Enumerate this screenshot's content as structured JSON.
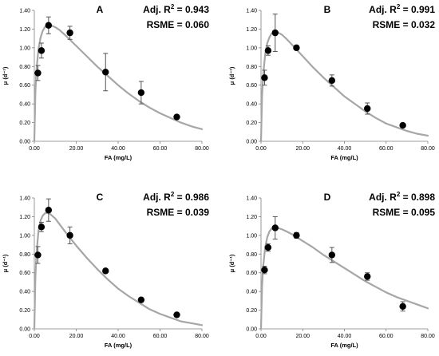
{
  "chart_data": [
    {
      "type": "scatter",
      "panel": "A",
      "xlabel": "FA (mg/L)",
      "ylabel": "μ (d⁻¹)",
      "xlim": [
        0,
        80
      ],
      "ylim": [
        0,
        1.4
      ],
      "x_ticks": [
        "0.00",
        "20.00",
        "40.00",
        "60.00",
        "80.00"
      ],
      "y_ticks": [
        "0.00",
        "0.20",
        "0.40",
        "0.60",
        "0.80",
        "1.00",
        "1.20",
        "1.40"
      ],
      "stats": {
        "r2_prefix": "Adj. R",
        "r2_value": "= 0.943",
        "rsme": "RSME = 0.060"
      },
      "points": [
        {
          "x": 1.7,
          "y": 0.73,
          "err": 0.08
        },
        {
          "x": 3.4,
          "y": 0.97,
          "err": 0.08
        },
        {
          "x": 6.8,
          "y": 1.24,
          "err": 0.09
        },
        {
          "x": 17,
          "y": 1.16,
          "err": 0.07
        },
        {
          "x": 34,
          "y": 0.74,
          "err": 0.2
        },
        {
          "x": 51,
          "y": 0.52,
          "err": 0.12
        },
        {
          "x": 68,
          "y": 0.26,
          "err": 0.02
        }
      ],
      "fit": {
        "x": [
          0,
          0.5,
          1,
          2,
          3,
          4,
          5,
          6,
          7,
          8,
          10,
          12,
          15,
          20,
          25,
          30,
          35,
          40,
          45,
          50,
          55,
          60,
          65,
          70,
          75,
          80
        ],
        "y": [
          0,
          0.52,
          0.76,
          0.99,
          1.11,
          1.18,
          1.22,
          1.24,
          1.245,
          1.24,
          1.22,
          1.19,
          1.13,
          1.02,
          0.91,
          0.8,
          0.7,
          0.6,
          0.51,
          0.43,
          0.36,
          0.3,
          0.25,
          0.2,
          0.16,
          0.13
        ]
      }
    },
    {
      "type": "scatter",
      "panel": "B",
      "xlabel": "FA (mg/L)",
      "ylabel": "μ (d⁻¹)",
      "xlim": [
        0,
        80
      ],
      "ylim": [
        0,
        1.4
      ],
      "x_ticks": [
        "0.00",
        "20.00",
        "40.00",
        "60.00",
        "80.00"
      ],
      "y_ticks": [
        "0.00",
        "0.20",
        "0.40",
        "0.60",
        "0.80",
        "1.00",
        "1.20",
        "1.40"
      ],
      "stats": {
        "r2_prefix": "Adj. R",
        "r2_value": "= 0.991",
        "rsme": "RSME = 0.032"
      },
      "points": [
        {
          "x": 1.7,
          "y": 0.68,
          "err": 0.08
        },
        {
          "x": 3.4,
          "y": 0.97,
          "err": 0.05
        },
        {
          "x": 6.8,
          "y": 1.16,
          "err": 0.2
        },
        {
          "x": 17,
          "y": 1.0,
          "err": 0.02
        },
        {
          "x": 34,
          "y": 0.65,
          "err": 0.06
        },
        {
          "x": 51,
          "y": 0.35,
          "err": 0.06
        },
        {
          "x": 68,
          "y": 0.17,
          "err": 0.01
        }
      ],
      "fit": {
        "x": [
          0,
          0.5,
          1,
          2,
          3,
          4,
          5,
          6,
          7,
          8,
          10,
          12,
          15,
          20,
          25,
          30,
          35,
          40,
          45,
          50,
          55,
          60,
          65,
          70,
          75,
          80
        ],
        "y": [
          0,
          0.48,
          0.7,
          0.93,
          1.05,
          1.11,
          1.15,
          1.165,
          1.17,
          1.165,
          1.14,
          1.1,
          1.03,
          0.91,
          0.79,
          0.68,
          0.58,
          0.48,
          0.4,
          0.32,
          0.25,
          0.19,
          0.15,
          0.11,
          0.08,
          0.06
        ]
      }
    },
    {
      "type": "scatter",
      "panel": "C",
      "xlabel": "FA (mg/L)",
      "ylabel": "μ (d⁻¹)",
      "xlim": [
        0,
        80
      ],
      "ylim": [
        0,
        1.4
      ],
      "x_ticks": [
        "0.00",
        "20.00",
        "40.00",
        "60.00",
        "80.00"
      ],
      "y_ticks": [
        "0.00",
        "0.20",
        "0.40",
        "0.60",
        "0.80",
        "1.00",
        "1.20",
        "1.40"
      ],
      "stats": {
        "r2_prefix": "Adj. R",
        "r2_value": "= 0.986",
        "rsme": "RSME = 0.039"
      },
      "points": [
        {
          "x": 1.7,
          "y": 0.79,
          "err": 0.09
        },
        {
          "x": 3.4,
          "y": 1.09,
          "err": 0.05
        },
        {
          "x": 6.8,
          "y": 1.27,
          "err": 0.12
        },
        {
          "x": 17,
          "y": 1.0,
          "err": 0.09
        },
        {
          "x": 34,
          "y": 0.62,
          "err": 0.02
        },
        {
          "x": 51,
          "y": 0.31,
          "err": 0.02
        },
        {
          "x": 68,
          "y": 0.15,
          "err": 0.01
        }
      ],
      "fit": {
        "x": [
          0,
          0.5,
          1,
          2,
          3,
          4,
          5,
          6,
          7,
          8,
          10,
          12,
          15,
          20,
          25,
          30,
          35,
          40,
          45,
          50,
          55,
          60,
          65,
          70,
          75,
          80
        ],
        "y": [
          0,
          0.55,
          0.8,
          1.05,
          1.16,
          1.21,
          1.235,
          1.24,
          1.235,
          1.22,
          1.18,
          1.12,
          1.03,
          0.89,
          0.76,
          0.64,
          0.53,
          0.43,
          0.35,
          0.28,
          0.21,
          0.16,
          0.12,
          0.08,
          0.06,
          0.04
        ]
      }
    },
    {
      "type": "scatter",
      "panel": "D",
      "xlabel": "FA (mg/L)",
      "ylabel": "μ (d⁻¹)",
      "xlim": [
        0,
        80
      ],
      "ylim": [
        0,
        1.4
      ],
      "x_ticks": [
        "0.00",
        "20.00",
        "40.00",
        "60.00",
        "80.00"
      ],
      "y_ticks": [
        "0.00",
        "0.20",
        "0.40",
        "0.60",
        "0.80",
        "1.00",
        "1.20",
        "1.40"
      ],
      "stats": {
        "r2_prefix": "Adj. R",
        "r2_value": "= 0.898",
        "rsme": "RSME = 0.095"
      },
      "points": [
        {
          "x": 1.7,
          "y": 0.63,
          "err": 0.04
        },
        {
          "x": 3.4,
          "y": 0.87,
          "err": 0.04
        },
        {
          "x": 6.8,
          "y": 1.08,
          "err": 0.12
        },
        {
          "x": 17,
          "y": 1.0,
          "err": 0.03
        },
        {
          "x": 34,
          "y": 0.79,
          "err": 0.08
        },
        {
          "x": 51,
          "y": 0.56,
          "err": 0.04
        },
        {
          "x": 68,
          "y": 0.24,
          "err": 0.05
        }
      ],
      "fit": {
        "x": [
          0,
          0.5,
          1,
          2,
          3,
          4,
          5,
          6,
          7,
          8,
          10,
          12,
          15,
          20,
          25,
          30,
          35,
          40,
          45,
          50,
          55,
          60,
          65,
          70,
          75,
          80
        ],
        "y": [
          0,
          0.45,
          0.66,
          0.87,
          0.98,
          1.04,
          1.07,
          1.08,
          1.085,
          1.08,
          1.065,
          1.045,
          1.01,
          0.94,
          0.87,
          0.79,
          0.72,
          0.65,
          0.58,
          0.51,
          0.45,
          0.39,
          0.34,
          0.3,
          0.26,
          0.22
        ]
      }
    }
  ]
}
